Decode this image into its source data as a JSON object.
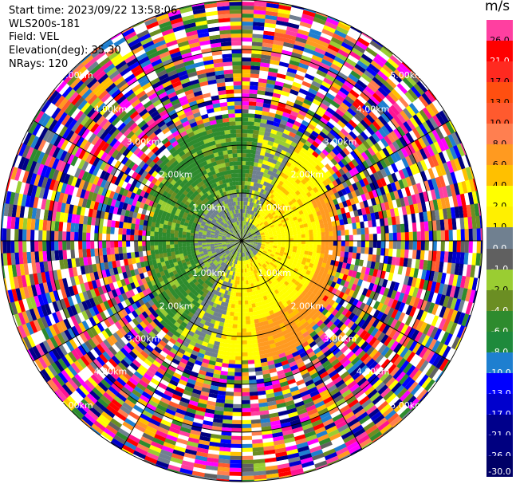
{
  "info": {
    "start_time": "Start time: 2023/09/22 13:58:06",
    "station": "WLS200s-181",
    "field": "Field: VEL",
    "elevation": "Elevation(deg): 35.30",
    "nrays": "NRays: 120"
  },
  "colorbar": {
    "unit": "m/s",
    "levels": [
      {
        "label": "26.0",
        "color": "#ff3fa0"
      },
      {
        "label": "21.0",
        "color": "#ff0000"
      },
      {
        "label": "17.0",
        "color": "#ff2a20"
      },
      {
        "label": "13.0",
        "color": "#ff4f10"
      },
      {
        "label": "10.0",
        "color": "#ff5a2e"
      },
      {
        "label": "8.0",
        "color": "#ff7f50"
      },
      {
        "label": "6.0",
        "color": "#ff9a20"
      },
      {
        "label": "4.0",
        "color": "#ffc000"
      },
      {
        "label": "2.0",
        "color": "#ffff00"
      },
      {
        "label": "1.0",
        "color": "#fff000"
      },
      {
        "label": "0.0",
        "color": "#708090"
      },
      {
        "label": "-1.0",
        "color": "#606060"
      },
      {
        "label": "-2.0",
        "color": "#9acd32"
      },
      {
        "label": "-4.0",
        "color": "#6b8e23"
      },
      {
        "label": "-6.0",
        "color": "#2e8b2e"
      },
      {
        "label": "-8.0",
        "color": "#1e8a3c"
      },
      {
        "label": "-10.0",
        "color": "#1e7fd0"
      },
      {
        "label": "-13.0",
        "color": "#0000ff"
      },
      {
        "label": "-17.0",
        "color": "#0000cd"
      },
      {
        "label": "-21.0",
        "color": "#00008b"
      },
      {
        "label": "-26.0",
        "color": "#000080"
      },
      {
        "label": "-30.0",
        "color": "#000066"
      }
    ]
  },
  "range_rings": {
    "labels": [
      "1.00km",
      "2.00km",
      "3.00km",
      "4.00km",
      "5.00km"
    ]
  }
}
